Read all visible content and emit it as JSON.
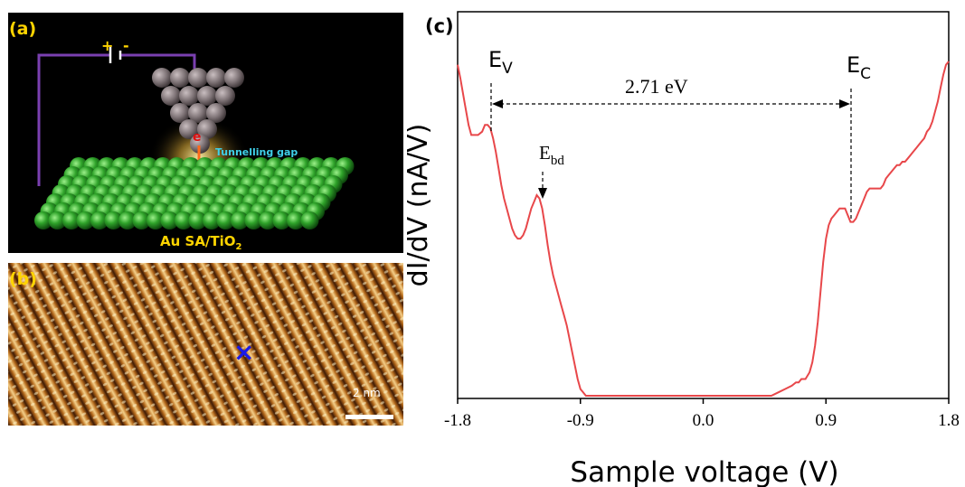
{
  "panel_a": {
    "label": "(a)",
    "plus": "+",
    "minus": "-",
    "electron": "e",
    "gap_label": "Tunnelling gap",
    "sample_label": "Au SA/TiO",
    "sample_sub": "2"
  },
  "panel_b": {
    "label": "(b)",
    "scale_label": "2 nm",
    "marker": "×"
  },
  "panel_c": {
    "label": "(c)",
    "ev_main": "E",
    "ev_sub": "V",
    "ec_main": "E",
    "ec_sub": "C",
    "ebd_main": "E",
    "ebd_sub": "bd",
    "gap_text": "2.71 eV"
  },
  "chart_data": {
    "type": "line",
    "xlabel": "Sample voltage (V)",
    "ylabel": "dI/dV (nA/V)",
    "xlim": [
      -1.8,
      1.8
    ],
    "ylim": [
      0,
      1
    ],
    "xticks": [
      "-1.8",
      "-0.9",
      "0.0",
      "0.9",
      "1.8"
    ],
    "xtick_values": [
      -1.8,
      -0.9,
      0.0,
      0.9,
      1.8
    ],
    "color": "#e8474a",
    "series": [
      {
        "x": [
          -1.8,
          -1.78,
          -1.75,
          -1.72,
          -1.7,
          -1.68,
          -1.65,
          -1.62,
          -1.6,
          -1.58,
          -1.56,
          -1.54,
          -1.52,
          -1.5,
          -1.48,
          -1.46,
          -1.44,
          -1.42,
          -1.4,
          -1.38,
          -1.36,
          -1.34,
          -1.32,
          -1.3,
          -1.28,
          -1.26,
          -1.24,
          -1.22,
          -1.2,
          -1.18,
          -1.16,
          -1.14,
          -1.12,
          -1.1,
          -1.08,
          -1.06,
          -1.04,
          -1.02,
          -1.0,
          -0.98,
          -0.96,
          -0.94,
          -0.92,
          -0.9,
          -0.88,
          -0.86,
          -0.84,
          -0.82,
          -0.8,
          -0.78,
          -0.76,
          -0.74,
          -0.72,
          -0.7,
          -0.6,
          -0.5,
          -0.4,
          -0.3,
          -0.2,
          -0.1,
          0.0,
          0.1,
          0.2,
          0.3,
          0.4,
          0.5,
          0.55,
          0.6,
          0.65,
          0.68,
          0.7,
          0.72,
          0.75,
          0.78,
          0.8,
          0.82,
          0.84,
          0.86,
          0.88,
          0.9,
          0.92,
          0.94,
          0.96,
          0.98,
          1.0,
          1.02,
          1.04,
          1.06,
          1.08,
          1.1,
          1.12,
          1.14,
          1.16,
          1.18,
          1.2,
          1.22,
          1.24,
          1.26,
          1.28,
          1.3,
          1.32,
          1.34,
          1.36,
          1.38,
          1.4,
          1.42,
          1.44,
          1.46,
          1.48,
          1.5,
          1.52,
          1.54,
          1.56,
          1.58,
          1.6,
          1.62,
          1.64,
          1.66,
          1.68,
          1.7,
          1.72,
          1.74,
          1.76,
          1.78,
          1.8
        ],
        "y": [
          0.99,
          0.95,
          0.88,
          0.81,
          0.78,
          0.78,
          0.78,
          0.79,
          0.81,
          0.81,
          0.8,
          0.77,
          0.73,
          0.68,
          0.63,
          0.59,
          0.56,
          0.53,
          0.5,
          0.48,
          0.47,
          0.47,
          0.48,
          0.5,
          0.53,
          0.56,
          0.58,
          0.6,
          0.59,
          0.56,
          0.51,
          0.45,
          0.4,
          0.36,
          0.33,
          0.3,
          0.27,
          0.24,
          0.21,
          0.17,
          0.13,
          0.09,
          0.05,
          0.02,
          0.01,
          0.0,
          0.0,
          0.0,
          0.0,
          0.0,
          0.0,
          0.0,
          0.0,
          0.0,
          0.0,
          0.0,
          0.0,
          0.0,
          0.0,
          0.0,
          0.0,
          0.0,
          0.0,
          0.0,
          0.0,
          0.0,
          0.01,
          0.02,
          0.03,
          0.04,
          0.04,
          0.05,
          0.05,
          0.07,
          0.1,
          0.15,
          0.22,
          0.31,
          0.4,
          0.47,
          0.51,
          0.53,
          0.54,
          0.55,
          0.56,
          0.56,
          0.56,
          0.54,
          0.52,
          0.52,
          0.53,
          0.55,
          0.57,
          0.59,
          0.61,
          0.62,
          0.62,
          0.62,
          0.62,
          0.62,
          0.63,
          0.65,
          0.66,
          0.67,
          0.68,
          0.69,
          0.69,
          0.7,
          0.7,
          0.71,
          0.72,
          0.73,
          0.74,
          0.75,
          0.76,
          0.77,
          0.79,
          0.8,
          0.82,
          0.85,
          0.88,
          0.92,
          0.96,
          0.99,
          1.0
        ]
      }
    ]
  }
}
